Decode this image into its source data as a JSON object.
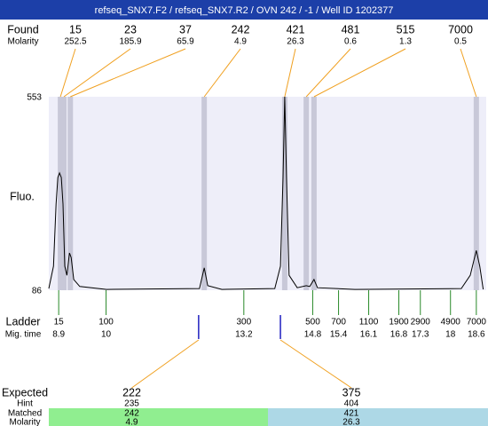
{
  "title": "refseq_SNX7.F2 / refseq_SNX7.R2 / OVN 242 / -1 / Well ID 1202377",
  "labels": {
    "found": "Found",
    "molarity": "Molarity",
    "fluo": "Fluo.",
    "ladder": "Ladder",
    "mig_time": "Mig. time",
    "expected": "Expected",
    "hint": "Hint",
    "matched": "Matched",
    "molarity2": "Molarity"
  },
  "found": [
    {
      "size": 15,
      "molarity": 252.5,
      "time": 8.94
    },
    {
      "size": 23,
      "molarity": 185.9,
      "time": 9.02
    },
    {
      "size": 37,
      "molarity": 65.9,
      "time": 9.17
    },
    {
      "size": 242,
      "molarity": 4.9,
      "time": 12.28
    },
    {
      "size": 421,
      "molarity": 26.3,
      "time": 14.15
    },
    {
      "size": 481,
      "molarity": 0.6,
      "time": 14.65
    },
    {
      "size": 515,
      "molarity": 1.3,
      "time": 14.83
    },
    {
      "size": 7000,
      "molarity": 0.5,
      "time": 18.6
    }
  ],
  "ladder": [
    {
      "size": 15,
      "time": 8.9
    },
    {
      "size": 100,
      "time": 10
    },
    {
      "size": 300,
      "time": 13.2
    },
    {
      "size": 500,
      "time": 14.8
    },
    {
      "size": 700,
      "time": 15.4
    },
    {
      "size": 1100,
      "time": 16.1
    },
    {
      "size": 1900,
      "time": 16.8
    },
    {
      "size": 2900,
      "time": 17.3
    },
    {
      "size": 4900,
      "time": 18
    },
    {
      "size": 7000,
      "time": 18.6
    }
  ],
  "expected": [
    {
      "size": 222,
      "hint": 235,
      "matched": 242,
      "molarity": 4.9,
      "time": 12.15,
      "color": "#90ee90"
    },
    {
      "size": 375,
      "hint": 404,
      "matched": 421,
      "molarity": 26.3,
      "time": 14.05,
      "color": "#add8e6"
    }
  ],
  "trace": {
    "xlim": [
      8.67,
      18.83
    ],
    "ylim": [
      86,
      553
    ],
    "yticks": [
      553,
      86
    ],
    "times": [
      8.67,
      8.78,
      8.84,
      8.88,
      8.92,
      8.96,
      9.0,
      9.04,
      9.09,
      9.15,
      9.19,
      9.25,
      9.39,
      10.01,
      12.17,
      12.28,
      12.36,
      12.69,
      13.92,
      14.05,
      14.11,
      14.15,
      14.19,
      14.25,
      14.44,
      14.65,
      14.73,
      14.83,
      14.91,
      15.78,
      18.25,
      18.46,
      18.6,
      18.68,
      18.76
    ],
    "values": [
      90,
      144,
      294,
      358,
      369,
      358,
      294,
      144,
      122,
      176,
      165,
      112,
      95,
      88,
      90,
      140,
      97,
      88,
      90,
      144,
      358,
      553,
      358,
      122,
      92,
      97,
      95,
      112,
      92,
      88,
      90,
      122,
      182,
      144,
      88
    ]
  }
}
